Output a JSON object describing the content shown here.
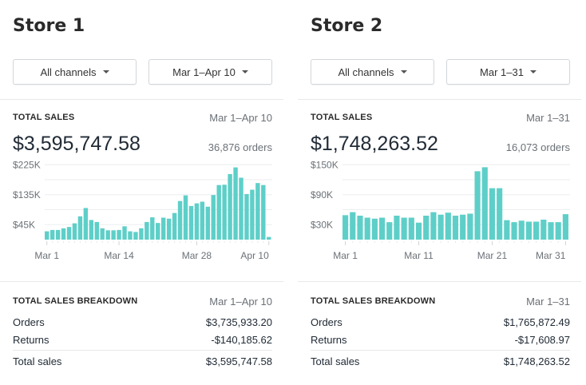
{
  "accent_color": "#5ecfc8",
  "stores": [
    {
      "title": "Store 1",
      "channel_button": "All channels",
      "date_button": "Mar 1–Apr 10",
      "total_sales": {
        "label": "TOTAL SALES",
        "range": "Mar 1–Apr 10",
        "amount": "$3,595,747.58",
        "orders": "36,876 orders"
      },
      "chart_data": {
        "type": "bar",
        "y_ticks": [
          "$225K",
          "$135K",
          "$45K"
        ],
        "y_tick_values": [
          225000,
          135000,
          45000
        ],
        "grid_step": 45000,
        "ylim": [
          0,
          240000
        ],
        "x_tick_labels": [
          "Mar 1",
          "Mar 14",
          "Mar 28",
          "Apr 10"
        ],
        "x_tick_indices": [
          0,
          13,
          27,
          40
        ],
        "grid": true,
        "values": [
          25000,
          29000,
          29000,
          34000,
          38000,
          49000,
          70000,
          95000,
          59000,
          53000,
          34000,
          28000,
          28000,
          29000,
          40000,
          25000,
          23000,
          34000,
          53000,
          67000,
          50000,
          66000,
          63000,
          80000,
          116000,
          133000,
          101000,
          109000,
          114000,
          99000,
          134000,
          164000,
          165000,
          197000,
          217000,
          186000,
          137000,
          150000,
          170000,
          164000,
          8000
        ]
      },
      "breakdown": {
        "label": "TOTAL SALES BREAKDOWN",
        "range": "Mar 1–Apr 10",
        "rows": [
          {
            "name": "Orders",
            "value": "$3,735,933.20"
          },
          {
            "name": "Returns",
            "value": "-$140,185.62"
          },
          {
            "name": "Total sales",
            "value": "$3,595,747.58"
          }
        ]
      }
    },
    {
      "title": "Store 2",
      "channel_button": "All channels",
      "date_button": "Mar 1–31",
      "total_sales": {
        "label": "TOTAL SALES",
        "range": "Mar 1–31",
        "amount": "$1,748,263.52",
        "orders": "16,073 orders"
      },
      "chart_data": {
        "type": "bar",
        "y_ticks": [
          "$150K",
          "$90K",
          "$30K"
        ],
        "y_tick_values": [
          150000,
          90000,
          30000
        ],
        "grid_step": 30000,
        "ylim": [
          0,
          160000
        ],
        "x_tick_labels": [
          "Mar 1",
          "Mar 11",
          "Mar 21",
          "Mar 31"
        ],
        "x_tick_indices": [
          0,
          10,
          20,
          30
        ],
        "grid": true,
        "values": [
          49000,
          55000,
          48000,
          44000,
          42000,
          44000,
          35000,
          48000,
          44000,
          44000,
          34000,
          48000,
          55000,
          50000,
          54000,
          48000,
          50000,
          52000,
          137000,
          145000,
          103000,
          103000,
          39000,
          35000,
          38000,
          36000,
          36000,
          40000,
          35000,
          35000,
          51000
        ]
      },
      "breakdown": {
        "label": "TOTAL SALES BREAKDOWN",
        "range": "Mar 1–31",
        "rows": [
          {
            "name": "Orders",
            "value": "$1,765,872.49"
          },
          {
            "name": "Returns",
            "value": "-$17,608.97"
          },
          {
            "name": "Total sales",
            "value": "$1,748,263.52"
          }
        ]
      }
    }
  ]
}
